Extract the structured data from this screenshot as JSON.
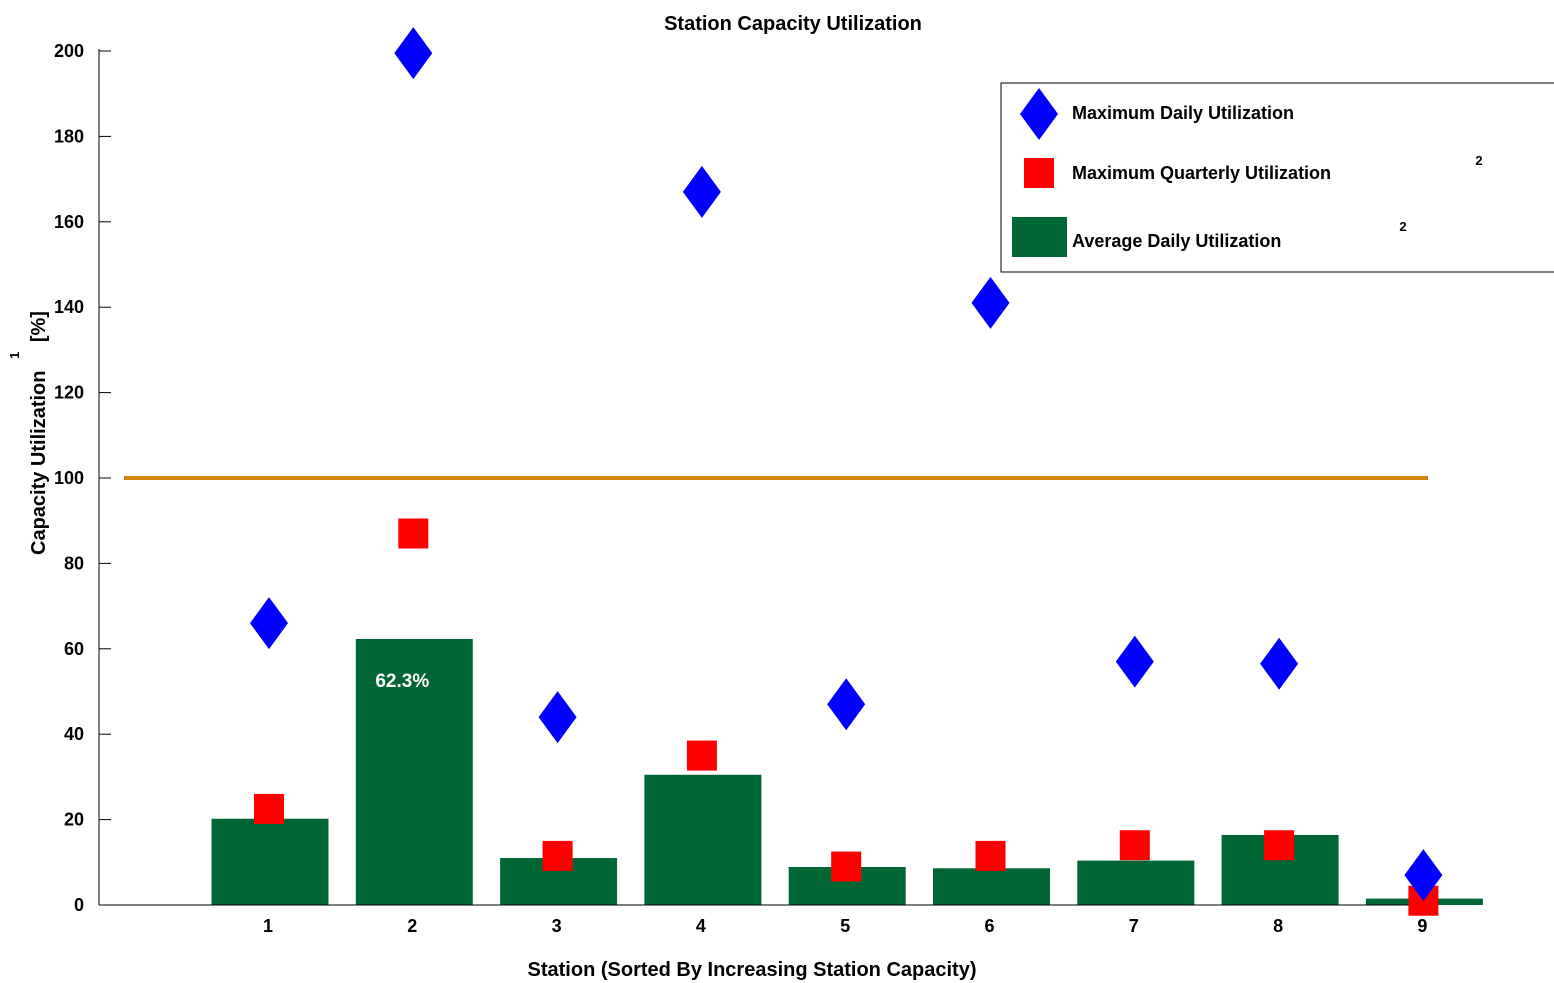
{
  "chart_data": {
    "type": "bar",
    "title": "Station Capacity Utilization",
    "xlabel": "Station (Sorted By Increasing Station Capacity)",
    "ylabel": "Capacity Utilization",
    "ylabel_unit": "[%]",
    "ylabel_footnote": "1",
    "ylim": [
      0,
      200
    ],
    "yticks": [
      0,
      20,
      40,
      60,
      80,
      100,
      120,
      140,
      160,
      180,
      200
    ],
    "categories": [
      "1",
      "2",
      "3",
      "4",
      "5",
      "6",
      "7",
      "8",
      "9"
    ],
    "series": [
      {
        "name": "Average Daily Utilization",
        "footnote": "2",
        "kind": "bar",
        "color": "#006633",
        "values": [
          20.2,
          62.3,
          11.0,
          30.5,
          8.9,
          8.6,
          10.4,
          16.4,
          1.5
        ]
      },
      {
        "name": "Maximum Daily Utilization",
        "footnote": "",
        "kind": "diamond",
        "color": "#0000ff",
        "values": [
          66.0,
          199.5,
          44.0,
          167.0,
          47.0,
          141.0,
          57.0,
          56.5,
          7.0
        ]
      },
      {
        "name": "Maximum Quarterly Utilization",
        "footnote": "2",
        "kind": "square",
        "color": "#ff0000",
        "values": [
          22.5,
          87.0,
          11.5,
          35.0,
          9.0,
          11.5,
          14.0,
          14.0,
          1.0
        ]
      }
    ],
    "reference_line": {
      "value": 100,
      "color": "#d4860b"
    },
    "annotations": [
      {
        "category": "2",
        "text": "62.3%"
      }
    ],
    "legend_position": "top-right",
    "grid": false
  }
}
